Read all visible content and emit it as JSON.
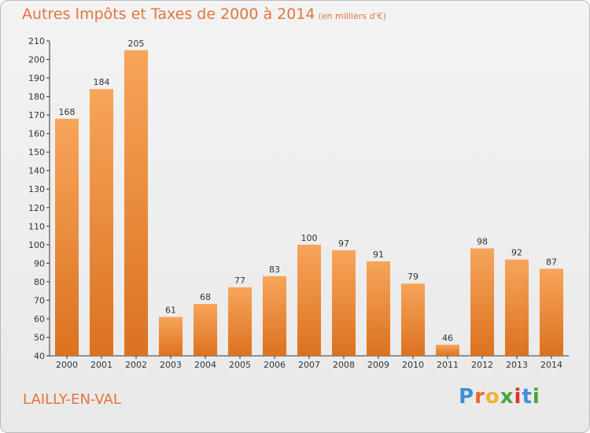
{
  "header": {
    "title": "Autres Impôts et Taxes de 2000 à 2014",
    "unit": "(en milliers d'€)"
  },
  "commune": "LAILLY-EN-VAL",
  "logo": {
    "text": "Proxiti",
    "letters": [
      "P",
      "r",
      "o",
      "x",
      "i",
      "t",
      "i"
    ]
  },
  "colors": {
    "accent": "#e3743c",
    "bar_light": "#f7a55a",
    "bar_dark": "#db7220",
    "logo": [
      "#3f8fd6",
      "#e8672c",
      "#f2b233",
      "#4aa43a",
      "#d8342d",
      "#3f8fd6",
      "#4aa43a"
    ]
  },
  "chart_data": {
    "type": "bar",
    "title": "Autres Impôts et Taxes de 2000 à 2014",
    "subtitle": "(en milliers d'€)",
    "categories": [
      "2000",
      "2001",
      "2002",
      "2003",
      "2004",
      "2005",
      "2006",
      "2007",
      "2008",
      "2009",
      "2010",
      "2011",
      "2012",
      "2013",
      "2014"
    ],
    "values": [
      168,
      184,
      205,
      61,
      68,
      77,
      83,
      100,
      97,
      91,
      79,
      46,
      98,
      92,
      87
    ],
    "ylim": [
      40,
      210
    ],
    "yticks": [
      40,
      50,
      60,
      70,
      80,
      90,
      100,
      110,
      120,
      130,
      140,
      150,
      160,
      170,
      180,
      190,
      200,
      210
    ],
    "grid": false,
    "legend": "none"
  }
}
